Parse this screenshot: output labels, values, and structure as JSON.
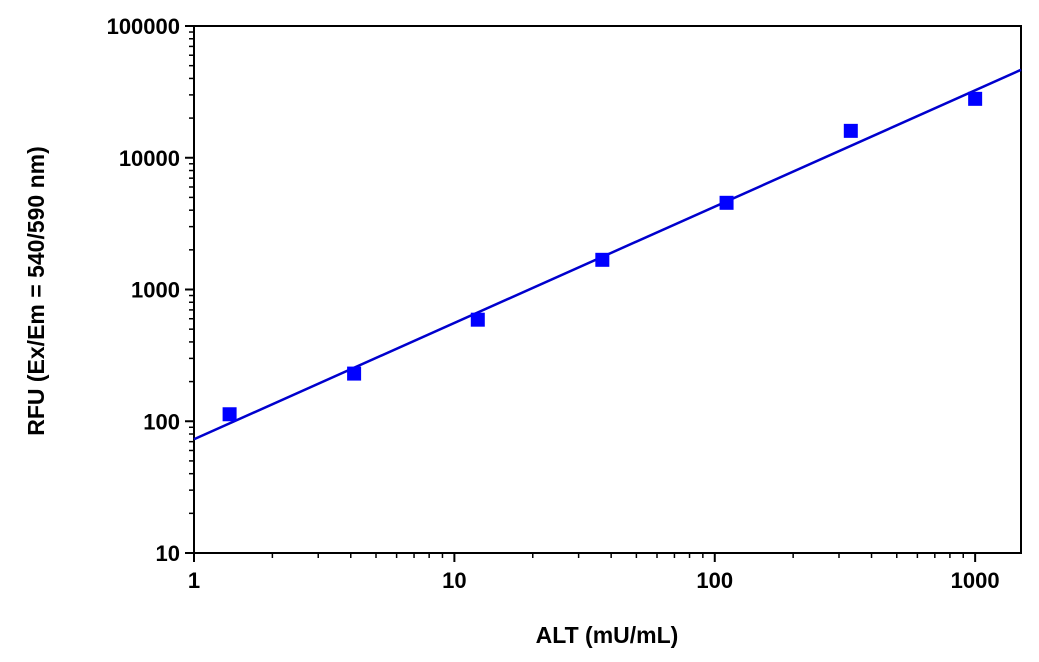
{
  "chart_data": {
    "type": "scatter",
    "title": "",
    "xlabel": "ALT (mU/mL)",
    "ylabel": "RFU (Ex/Em = 540/590 nm)",
    "xscale": "log",
    "yscale": "log",
    "xlim": [
      1,
      1500
    ],
    "ylim": [
      10,
      100000
    ],
    "xticks": [
      1,
      10,
      100,
      1000
    ],
    "xtick_labels": [
      "1",
      "10",
      "100",
      "1000"
    ],
    "yticks": [
      10,
      100,
      1000,
      10000,
      100000
    ],
    "ytick_labels": [
      "10",
      "100",
      "1000",
      "10000",
      "100000"
    ],
    "grid": false,
    "legend": "none",
    "series": [
      {
        "marker": "square",
        "color": "#0000ff",
        "points": [
          {
            "x": 1.37,
            "y": 113
          },
          {
            "x": 4.12,
            "y": 230
          },
          {
            "x": 12.3,
            "y": 590
          },
          {
            "x": 37,
            "y": 1680
          },
          {
            "x": 111,
            "y": 4550
          },
          {
            "x": 333,
            "y": 16000
          },
          {
            "x": 1000,
            "y": 28000
          }
        ]
      }
    ],
    "fit_line": {
      "color": "#0000cd",
      "points": [
        {
          "x": 1,
          "y": 73
        },
        {
          "x": 1500,
          "y": 46500
        }
      ]
    }
  }
}
